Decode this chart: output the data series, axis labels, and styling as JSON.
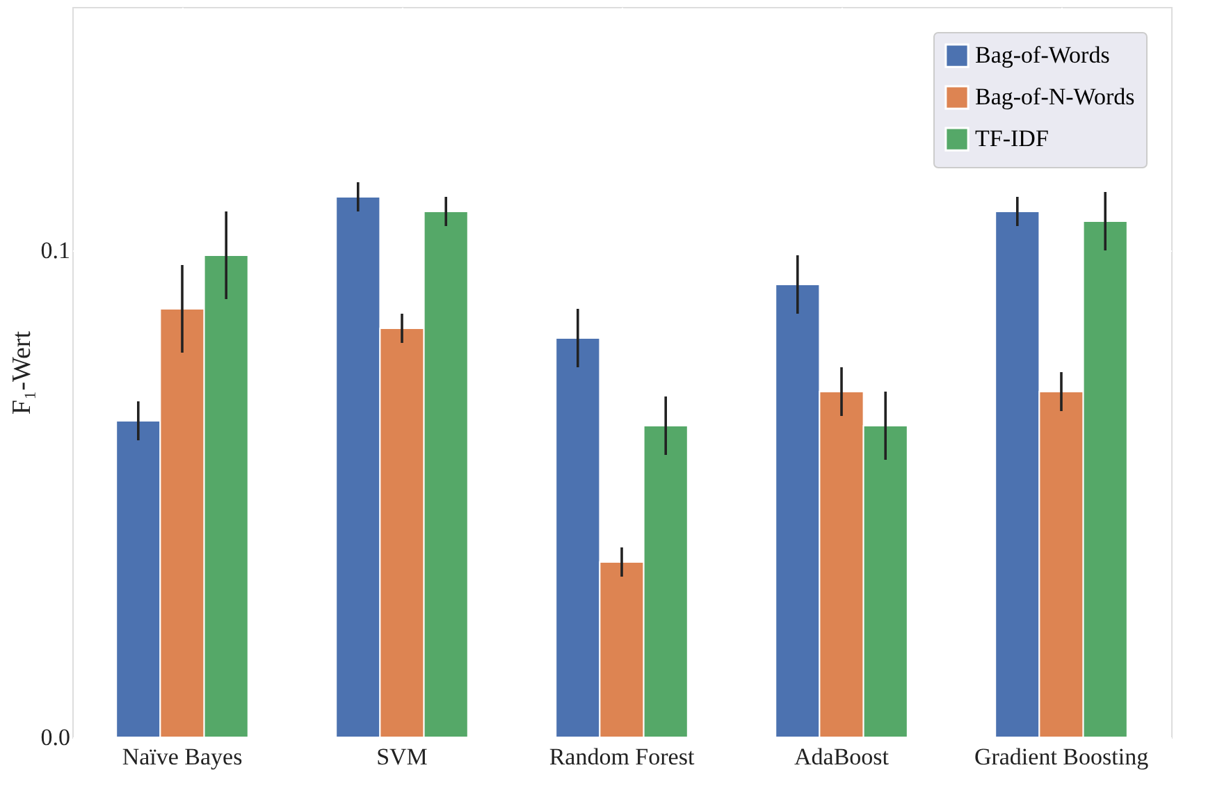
{
  "chart_data": {
    "type": "bar",
    "ylabel": "F₁-Wert",
    "categories": [
      "Naïve Bayes",
      "SVM",
      "Random Forest",
      "AdaBoost",
      "Gradient Boosting"
    ],
    "series": [
      {
        "name": "Bag-of-Words",
        "color": "#4c72b0",
        "values": [
          0.065,
          0.111,
          0.082,
          0.093,
          0.108
        ],
        "errors": [
          0.004,
          0.003,
          0.006,
          0.006,
          0.003
        ]
      },
      {
        "name": "Bag-of-N-Words",
        "color": "#dd8452",
        "values": [
          0.088,
          0.084,
          0.036,
          0.071,
          0.071
        ],
        "errors": [
          0.009,
          0.003,
          0.003,
          0.005,
          0.004
        ]
      },
      {
        "name": "TF-IDF",
        "color": "#55a868",
        "values": [
          0.099,
          0.108,
          0.064,
          0.064,
          0.106
        ],
        "errors": [
          0.009,
          0.003,
          0.006,
          0.007,
          0.006
        ]
      }
    ],
    "ylim": [
      0,
      0.15
    ],
    "yticks": [
      {
        "value": 0,
        "label": "0.0"
      },
      {
        "value": 0.1,
        "label": "0.1"
      }
    ],
    "grid": true,
    "legend": "top right"
  }
}
